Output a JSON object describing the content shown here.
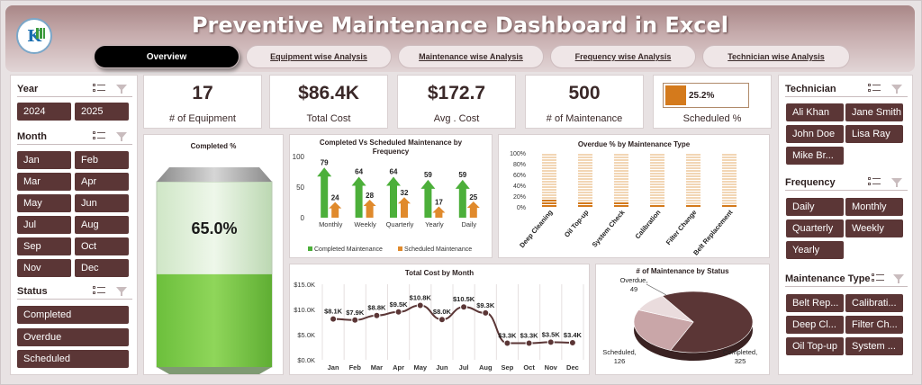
{
  "header": {
    "title": "Preventive Maintenance Dashboard in Excel",
    "tabs": [
      {
        "label": "Overview",
        "active": true
      },
      {
        "label": "Equipment wise Analysis",
        "active": false
      },
      {
        "label": "Maintenance wise Analysis",
        "active": false
      },
      {
        "label": "Frequency  wise Analysis",
        "active": false
      },
      {
        "label": "Technician  wise Analysis",
        "active": false
      }
    ]
  },
  "left_slicers": {
    "year": {
      "title": "Year",
      "items": [
        "2024",
        "2025"
      ]
    },
    "month": {
      "title": "Month",
      "items": [
        "Jan",
        "Feb",
        "Mar",
        "Apr",
        "May",
        "Jun",
        "Jul",
        "Aug",
        "Sep",
        "Oct",
        "Nov",
        "Dec"
      ]
    },
    "status": {
      "title": "Status",
      "items": [
        "Completed",
        "Overdue",
        "Scheduled"
      ]
    }
  },
  "right_slicers": {
    "technician": {
      "title": "Technician",
      "items": [
        "Ali Khan",
        "Jane Smith",
        "John Doe",
        "Lisa Ray",
        "Mike Br..."
      ]
    },
    "frequency": {
      "title": "Frequency",
      "items": [
        "Daily",
        "Monthly",
        "Quarterly",
        "Weekly",
        "Yearly"
      ]
    },
    "maintenance_type": {
      "title": "Maintenance Type",
      "items": [
        "Belt Rep...",
        "Calibrati...",
        "Deep Cl...",
        "Filter Ch...",
        "Oil Top-up",
        "System ..."
      ]
    }
  },
  "kpis": [
    {
      "value": "17",
      "label": "# of Equipment"
    },
    {
      "value": "$86.4K",
      "label": "Total Cost"
    },
    {
      "value": "$172.7",
      "label": "Avg . Cost"
    },
    {
      "value": "500",
      "label": "# of Maintenance"
    }
  ],
  "scheduled_kpi": {
    "value": "25.2%",
    "fraction": 0.252,
    "label": "Scheduled %"
  },
  "colors": {
    "maroon": "#5b3636",
    "green": "#4caf3a",
    "orange": "#e08a2c",
    "accent_orange": "#d47a1c"
  },
  "chart_data": [
    {
      "id": "completed_pct",
      "type": "bar",
      "title": "Completed %",
      "values": [
        0.65
      ],
      "value_label": "65.0%"
    },
    {
      "id": "completed_vs_scheduled",
      "type": "bar",
      "title": "Completed Vs Scheduled Maintenance by Frequency",
      "categories": [
        "Monthly",
        "Weekly",
        "Quarterly",
        "Yearly",
        "Daily"
      ],
      "series": [
        {
          "name": "Completed Maintenance",
          "values": [
            79,
            64,
            64,
            59,
            59
          ],
          "color": "#4caf3a"
        },
        {
          "name": "Scheduled Maintenance",
          "values": [
            24,
            28,
            32,
            17,
            25
          ],
          "color": "#e08a2c"
        }
      ],
      "yticks": [
        "0",
        "50",
        "100"
      ],
      "ylim": [
        0,
        100
      ],
      "legend": "bottom"
    },
    {
      "id": "overdue_pct",
      "type": "bar",
      "title": "Overdue % by Maintenance Type",
      "categories": [
        "Deep Cleaning",
        "Oil Top-up",
        "System Check",
        "Calibration",
        "Filter Change",
        "Belt Replacement"
      ],
      "values": [
        0.14,
        0.1,
        0.08,
        0.06,
        0.04,
        0.04
      ],
      "yticks": [
        "0%",
        "20%",
        "40%",
        "60%",
        "80%",
        "100%"
      ],
      "ylim": [
        0,
        1
      ]
    },
    {
      "id": "total_cost_by_month",
      "type": "line",
      "title": "Total Cost by Month",
      "categories": [
        "Jan",
        "Feb",
        "Mar",
        "Apr",
        "May",
        "Jun",
        "Jul",
        "Aug",
        "Sep",
        "Oct",
        "Nov",
        "Dec"
      ],
      "values": [
        8.1,
        7.9,
        8.8,
        9.5,
        10.8,
        8.0,
        10.5,
        9.3,
        3.3,
        3.3,
        3.5,
        3.4
      ],
      "labels": [
        "$8.1K",
        "$7.9K",
        "$8.8K",
        "$9.5K",
        "$10.8K",
        "$8.0K",
        "$10.5K",
        "$9.3K",
        "$3.3K",
        "$3.3K",
        "$3.5K",
        "$3.4K"
      ],
      "yticks": [
        "$0.0K",
        "$5.0K",
        "$10.0K",
        "$15.0K"
      ],
      "ylim": [
        0,
        15
      ]
    },
    {
      "id": "maintenance_by_status",
      "type": "pie",
      "title": "# of Maintenance by Status",
      "slices": [
        {
          "name": "Completed",
          "value": 325,
          "label": "Completed,",
          "count": "325",
          "color": "#5b3636"
        },
        {
          "name": "Scheduled",
          "value": 126,
          "label": "Scheduled,",
          "count": "126",
          "color": "#c9a6a8"
        },
        {
          "name": "Overdue",
          "value": 49,
          "label": "Overdue,",
          "count": "49",
          "color": "#eadcdd"
        }
      ]
    }
  ]
}
